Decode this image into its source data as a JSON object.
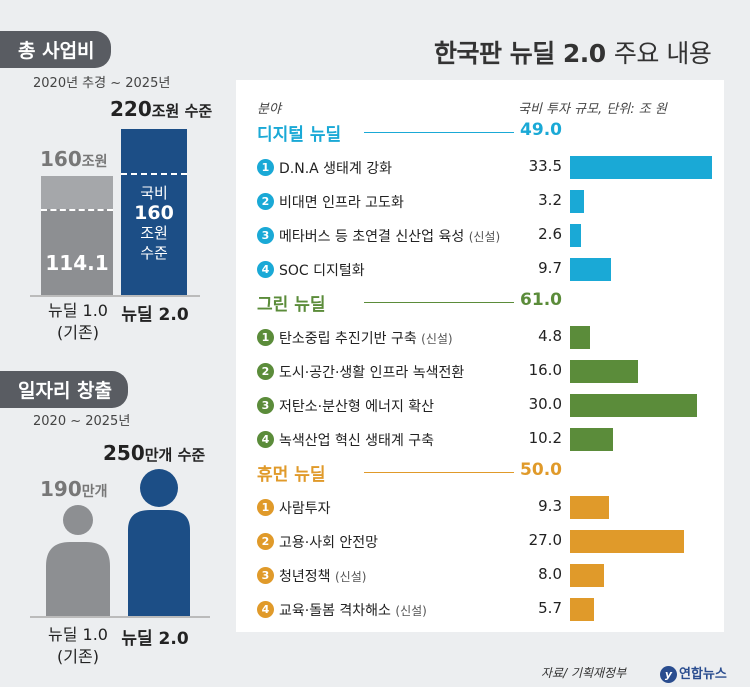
{
  "left": {
    "budget": {
      "header": "총 사업비",
      "period": "2020년 추경 ~ 2025년",
      "new_total_num": "220",
      "new_total_unit": "조원 수준",
      "old_total_num": "160",
      "old_total_unit": "조원",
      "old_bar_value": "114.1",
      "new_bar_lines": [
        "국비",
        "160",
        "조원",
        "수준"
      ],
      "old_label": "뉴딜 1.0",
      "old_label_sub": "(기존)",
      "new_label": "뉴딜 2.0",
      "values": {
        "old_total": 160,
        "old_inner": 114.1,
        "new_total": 220,
        "new_inner": 160
      }
    },
    "jobs": {
      "header": "일자리 창출",
      "period": "2020 ~ 2025년",
      "new_num": "250",
      "new_unit": "만개 수준",
      "old_num": "190",
      "old_unit": "만개",
      "old_label": "뉴딜 1.0",
      "old_label_sub": "(기존)",
      "new_label": "뉴딜 2.0",
      "values": {
        "old": 190,
        "new": 250
      }
    }
  },
  "title_bold": "한국판 뉴딜 2.0",
  "title_light": "주요 내용",
  "panel": {
    "col_left": "분야",
    "col_right": "국비 투자 규모, 단위: 조 원"
  },
  "colors": {
    "digital": "#1aa9d6",
    "green": "#5b8c3a",
    "human": "#e09a2a",
    "gray": "#8d8f92",
    "navy": "#1c4e86"
  },
  "chart_data": {
    "type": "bar",
    "unit": "조 원",
    "groups": [
      {
        "name": "디지털 뉴딜",
        "total": "49.0",
        "color_key": "digital",
        "items": [
          {
            "num": "1",
            "label": "D.N.A 생태계 강화",
            "note": "",
            "value": 33.5,
            "display": "33.5"
          },
          {
            "num": "2",
            "label": "비대면 인프라 고도화",
            "note": "",
            "value": 3.2,
            "display": "3.2"
          },
          {
            "num": "3",
            "label": "메타버스 등 초연결 신산업 육성",
            "note": "(신설)",
            "value": 2.6,
            "display": "2.6"
          },
          {
            "num": "4",
            "label": "SOC 디지털화",
            "note": "",
            "value": 9.7,
            "display": "9.7"
          }
        ]
      },
      {
        "name": "그린 뉴딜",
        "total": "61.0",
        "color_key": "green",
        "items": [
          {
            "num": "1",
            "label": "탄소중립 추진기반 구축",
            "note": "(신설)",
            "value": 4.8,
            "display": "4.8"
          },
          {
            "num": "2",
            "label": "도시·공간·생활 인프라 녹색전환",
            "note": "",
            "value": 16.0,
            "display": "16.0"
          },
          {
            "num": "3",
            "label": "저탄소·분산형 에너지 확산",
            "note": "",
            "value": 30.0,
            "display": "30.0"
          },
          {
            "num": "4",
            "label": "녹색산업 혁신 생태계 구축",
            "note": "",
            "value": 10.2,
            "display": "10.2"
          }
        ]
      },
      {
        "name": "휴먼 뉴딜",
        "total": "50.0",
        "color_key": "human",
        "items": [
          {
            "num": "1",
            "label": "사람투자",
            "note": "",
            "value": 9.3,
            "display": "9.3"
          },
          {
            "num": "2",
            "label": "고용·사회 안전망",
            "note": "",
            "value": 27.0,
            "display": "27.0"
          },
          {
            "num": "3",
            "label": "청년정책",
            "note": "(신설)",
            "value": 8.0,
            "display": "8.0"
          },
          {
            "num": "4",
            "label": "교육·돌봄 격차해소",
            "note": "(신설)",
            "value": 5.7,
            "display": "5.7"
          }
        ]
      }
    ]
  },
  "source": "자료/ 기획재정부",
  "logo_text": "연합뉴스",
  "logo_mark": "y"
}
